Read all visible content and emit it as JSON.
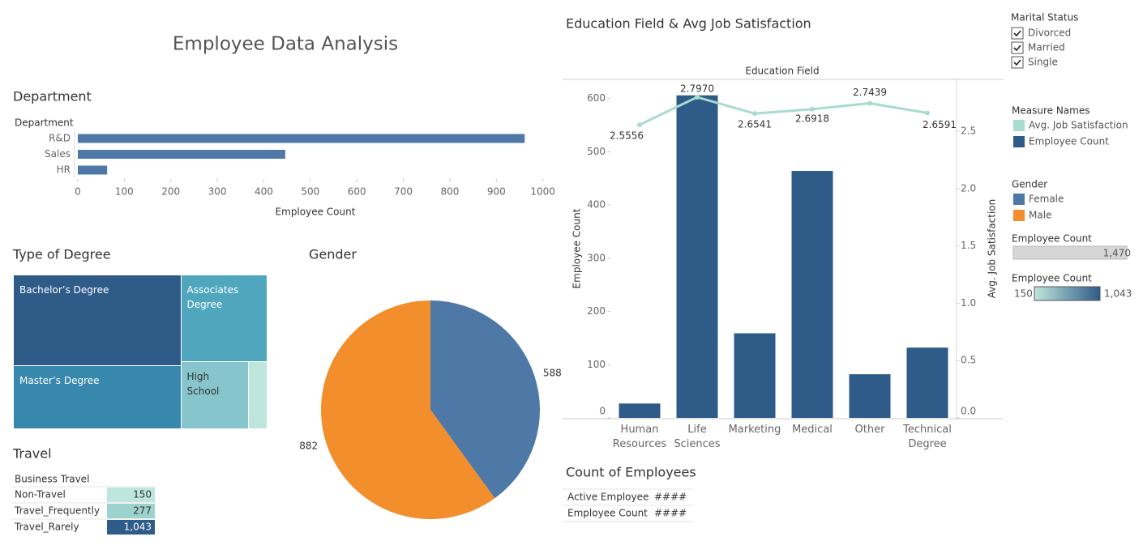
{
  "title": "Employee Data Analysis",
  "chart_data": [
    {
      "type": "hbar",
      "title": "Department",
      "y_header": "Department",
      "categories": [
        "R&D",
        "Sales",
        "HR"
      ],
      "values": [
        961,
        446,
        63
      ],
      "color": "#4e79a7",
      "xlim": [
        0,
        1025
      ],
      "xticks": [
        0,
        100,
        200,
        300,
        400,
        500,
        600,
        700,
        800,
        900,
        1000
      ],
      "x_label": "Employee Count"
    },
    {
      "type": "treemap",
      "title": "Type of Degree",
      "categories": [
        "Bachelor’s Degree",
        "Associates Degree",
        "Master’s Degree",
        "High School",
        null
      ],
      "values": [
        572,
        282,
        398,
        170,
        48
      ],
      "colors": [
        "#2e5b88",
        "#4fa6bd",
        "#3887ad",
        "#86c5cb",
        "#bfe6dc"
      ]
    },
    {
      "type": "pie",
      "title": "Gender",
      "categories": [
        "Female",
        "Male"
      ],
      "values": [
        588,
        882
      ],
      "colors": [
        "#4e79a7",
        "#f28e2b"
      ]
    },
    {
      "type": "table",
      "title": "Travel",
      "header": "Business Travel",
      "categories": [
        "Non-Travel",
        "Travel_Frequently",
        "Travel_Rarely"
      ],
      "values": [
        150,
        277,
        1043
      ],
      "value_labels": [
        "150",
        "277",
        "1,043"
      ],
      "colors": [
        "#bfe6dc",
        "#9dd3cf",
        "#2e5b88"
      ]
    },
    {
      "type": "combo",
      "title": "Education Field & Avg Job Satisfaction",
      "x_header": "Education Field",
      "categories": [
        "Human Resources",
        "Life Sciences",
        "Marketing",
        "Medical",
        "Other",
        "Technical Degree"
      ],
      "series": [
        {
          "name": "Avg. Job Satisfaction",
          "color": "#a8dccf",
          "type": "line",
          "axis": "y2",
          "values": [
            2.5556,
            2.797,
            2.6541,
            2.6918,
            2.7439,
            2.6591
          ],
          "value_labels": [
            "2.5556",
            "2.7970",
            "2.6541",
            "2.6918",
            "2.7439",
            "2.6591"
          ]
        },
        {
          "name": "Employee Count",
          "color": "#2e5b88",
          "type": "bar",
          "values": [
            27,
            606,
            159,
            464,
            82,
            132
          ]
        }
      ],
      "y_label": "Employee Count",
      "y2_label": "Avg. Job Satisfaction",
      "ylim": [
        0,
        636
      ],
      "yticks": [
        0,
        100,
        200,
        300,
        400,
        500,
        600
      ],
      "y2lim": [
        0,
        2.952
      ],
      "y2ticks": [
        {
          "value": 0,
          "label": "0.0"
        },
        {
          "value": 0.5,
          "label": "0.5"
        },
        {
          "value": 1,
          "label": "1.0"
        },
        {
          "value": 1.5,
          "label": "1.5"
        },
        {
          "value": 2,
          "label": "2.0"
        },
        {
          "value": 2.5,
          "label": "2.5"
        }
      ]
    }
  ],
  "count_table": {
    "title": "Count of Employees",
    "rows": [
      [
        "Active Employee",
        "####"
      ],
      [
        "Employee Count",
        "####"
      ]
    ]
  },
  "filters": {
    "title": "Marital Status",
    "options": [
      "Divorced",
      "Married",
      "Single"
    ]
  },
  "legends": {
    "measure_names": {
      "title": "Measure Names"
    },
    "size": {
      "title": "Employee Count",
      "value": 1470,
      "label": "1,470"
    },
    "color": {
      "title": "Employee Count",
      "colors": [
        "#c0e6dc",
        "#2e5b88"
      ],
      "stops": [
        {
          "value": 150,
          "label": "150"
        },
        {
          "value": 1043,
          "label": "1,043"
        }
      ]
    }
  }
}
